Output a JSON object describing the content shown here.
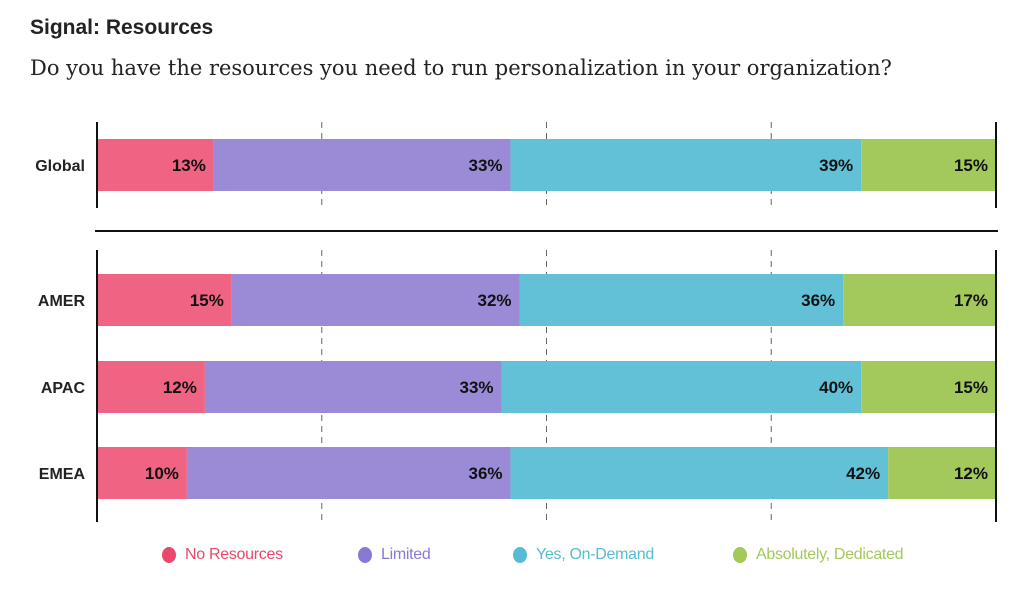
{
  "chart_data": {
    "type": "bar",
    "orientation": "horizontal",
    "stacked": true,
    "title": "Signal: Resources",
    "subtitle": "Do you have the resources you need to run personalization in your organization?",
    "categories": [
      "Global",
      "AMER",
      "APAC",
      "EMEA"
    ],
    "xlim": [
      0,
      100
    ],
    "grid": "vertical dashed at 25, 50, 75",
    "legend_placement": "bottom",
    "series": [
      {
        "name": "No Resources",
        "color": "#ee6482",
        "text_color": "#e8496c",
        "values": [
          13,
          15,
          12,
          10
        ]
      },
      {
        "name": "Limited",
        "color": "#9b8bd6",
        "text_color": "#8a79d2",
        "values": [
          33,
          32,
          33,
          36
        ]
      },
      {
        "name": "Yes, On-Demand",
        "color": "#62c1d6",
        "text_color": "#56bcd3",
        "values": [
          39,
          36,
          40,
          42
        ]
      },
      {
        "name": "Absolutely, Dedicated",
        "color": "#a3c95c",
        "text_color": "#a3c95a",
        "values": [
          15,
          17,
          15,
          12
        ]
      }
    ],
    "data_labels": [
      [
        "13%",
        "33%",
        "39%",
        "15%"
      ],
      [
        "15%",
        "32%",
        "36%",
        "17%"
      ],
      [
        "12%",
        "33%",
        "40%",
        "15%"
      ],
      [
        "10%",
        "36%",
        "42%",
        "12%"
      ]
    ]
  }
}
